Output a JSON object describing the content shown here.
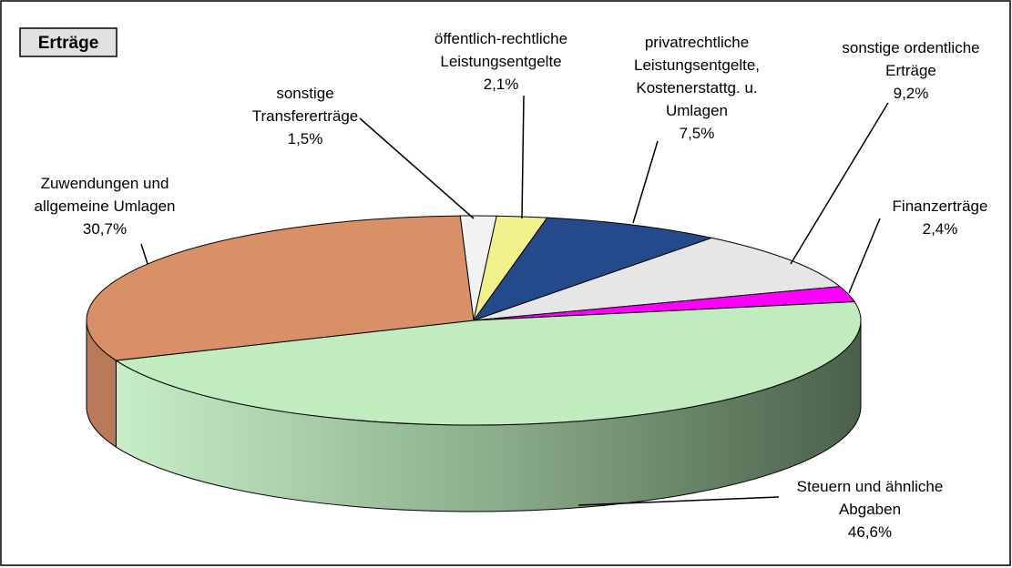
{
  "chart_data": {
    "type": "pie3d",
    "title": "Erträge",
    "categories": [
      "sonstige\nTransfererträge",
      "öffentlich-rechtliche\nLeistungsentgelte",
      "privatrechtliche\nLeistungsentgelte,\nKostenerstattg. u.\nUmlagen",
      "sonstige ordentliche\nErträge",
      "Finanzerträge",
      "Steuern und ähnliche\nAbgaben",
      "Zuwendungen und\nallgemeine Umlagen"
    ],
    "values": [
      1.5,
      2.1,
      7.5,
      9.2,
      2.4,
      46.6,
      30.7
    ],
    "value_labels": [
      "1,5%",
      "2,1%",
      "7,5%",
      "9,2%",
      "2,4%",
      "46,6%",
      "30,7%"
    ],
    "colors": [
      "#f2f2f2",
      "#f0f08c",
      "#244a8c",
      "#e6e6e6",
      "#ff00ff",
      "#c0ecc0",
      "#d99066"
    ]
  }
}
